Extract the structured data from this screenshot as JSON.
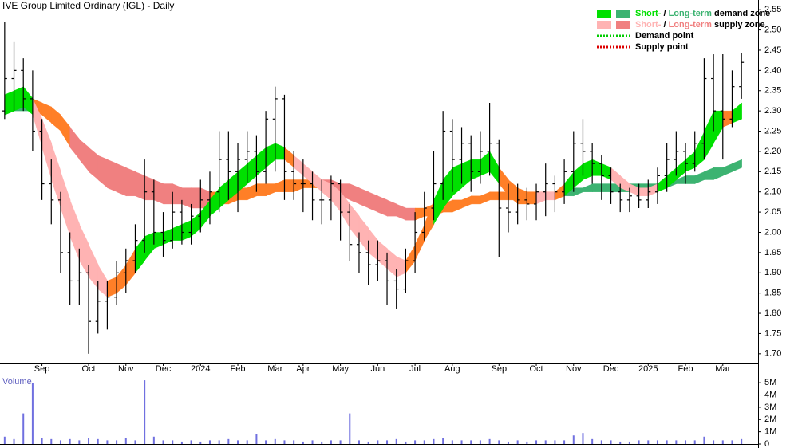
{
  "chart_data": {
    "type": "ohlc",
    "title": "IVE Group Limited Ordinary (IGL) - Daily",
    "categories": [
      null,
      null,
      null,
      null,
      "Sep",
      null,
      null,
      null,
      null,
      "Oct",
      null,
      null,
      null,
      "Nov",
      null,
      null,
      null,
      "Dec",
      null,
      null,
      null,
      "2024",
      null,
      null,
      null,
      "Feb",
      null,
      null,
      null,
      "Mar",
      null,
      null,
      "Apr",
      null,
      null,
      null,
      "May",
      null,
      null,
      null,
      "Jun",
      null,
      null,
      null,
      "Jul",
      null,
      null,
      null,
      "Aug",
      null,
      null,
      null,
      null,
      "Sep",
      null,
      null,
      null,
      "Oct",
      null,
      null,
      null,
      "Nov",
      null,
      null,
      null,
      "Dec",
      null,
      null,
      null,
      "2025",
      null,
      null,
      null,
      "Feb",
      null,
      null,
      null,
      "Mar",
      null,
      null
    ],
    "ohlc": {
      "color": "#000000",
      "open": [
        2.3,
        2.38,
        2.4,
        2.33,
        2.25,
        2.12,
        2.08,
        1.95,
        1.88,
        1.9,
        1.78,
        1.83,
        1.84,
        1.9,
        1.93,
        1.98,
        2.1,
        2.0,
        1.98,
        2.05,
        2.0,
        2.04,
        2.08,
        2.1,
        2.18,
        2.15,
        2.18,
        2.2,
        2.15,
        2.28,
        2.33,
        2.15,
        2.12,
        2.12,
        2.08,
        2.08,
        2.12,
        2.05,
        1.97,
        1.95,
        1.92,
        1.93,
        1.88,
        1.86,
        1.93,
        2.0,
        2.06,
        2.12,
        2.25,
        2.18,
        2.22,
        2.15,
        2.2,
        2.22,
        2.06,
        2.05,
        2.08,
        2.07,
        2.1,
        2.12,
        2.1,
        2.15,
        2.22,
        2.2,
        2.17,
        2.14,
        2.1,
        2.08,
        2.09,
        2.08,
        2.1,
        2.14,
        2.18,
        2.2,
        2.17,
        2.22,
        2.38,
        2.3,
        2.28,
        2.36
      ],
      "high": [
        2.52,
        2.47,
        2.43,
        2.4,
        2.28,
        2.18,
        2.1,
        2.0,
        1.96,
        1.92,
        1.88,
        1.88,
        1.93,
        1.96,
        2.02,
        2.18,
        2.13,
        2.05,
        2.1,
        2.08,
        2.07,
        2.13,
        2.15,
        2.25,
        2.25,
        2.22,
        2.25,
        2.24,
        2.3,
        2.36,
        2.34,
        2.2,
        2.18,
        2.15,
        2.13,
        2.14,
        2.13,
        2.07,
        2.0,
        1.98,
        1.98,
        1.95,
        1.91,
        1.96,
        2.05,
        2.1,
        2.2,
        2.3,
        2.28,
        2.26,
        2.24,
        2.25,
        2.32,
        2.23,
        2.12,
        2.12,
        2.11,
        2.12,
        2.17,
        2.14,
        2.18,
        2.25,
        2.28,
        2.22,
        2.19,
        2.16,
        2.12,
        2.11,
        2.12,
        2.13,
        2.16,
        2.22,
        2.25,
        2.22,
        2.25,
        2.43,
        2.44,
        2.44,
        2.4,
        2.45
      ],
      "low": [
        2.28,
        2.3,
        2.3,
        2.2,
        2.08,
        2.02,
        1.9,
        1.82,
        1.82,
        1.7,
        1.75,
        1.76,
        1.82,
        1.85,
        1.9,
        1.95,
        1.97,
        1.94,
        1.96,
        1.97,
        1.97,
        2.0,
        2.02,
        2.05,
        2.08,
        2.05,
        2.12,
        2.1,
        2.12,
        2.15,
        2.08,
        2.08,
        2.05,
        2.03,
        2.02,
        2.03,
        1.98,
        1.93,
        1.9,
        1.87,
        1.88,
        1.82,
        1.81,
        1.85,
        1.9,
        1.98,
        2.03,
        2.08,
        2.1,
        2.12,
        2.1,
        2.12,
        2.14,
        1.94,
        2.0,
        2.02,
        2.03,
        2.03,
        2.04,
        2.05,
        2.07,
        2.1,
        2.14,
        2.12,
        2.08,
        2.07,
        2.05,
        2.05,
        2.06,
        2.06,
        2.07,
        2.1,
        2.14,
        2.12,
        2.15,
        2.18,
        2.25,
        2.18,
        2.26,
        2.33
      ],
      "close": [
        2.38,
        2.4,
        2.33,
        2.25,
        2.12,
        2.08,
        1.95,
        1.88,
        1.9,
        1.78,
        1.83,
        1.84,
        1.9,
        1.93,
        1.98,
        2.1,
        2.0,
        1.98,
        2.05,
        2.0,
        2.04,
        2.08,
        2.1,
        2.18,
        2.15,
        2.18,
        2.2,
        2.15,
        2.28,
        2.33,
        2.15,
        2.12,
        2.12,
        2.08,
        2.08,
        2.12,
        2.05,
        1.97,
        1.95,
        1.92,
        1.93,
        1.88,
        1.86,
        1.93,
        2.0,
        2.06,
        2.12,
        2.25,
        2.18,
        2.22,
        2.15,
        2.2,
        2.22,
        2.06,
        2.05,
        2.08,
        2.07,
        2.1,
        2.12,
        2.1,
        2.15,
        2.22,
        2.2,
        2.17,
        2.14,
        2.1,
        2.08,
        2.09,
        2.08,
        2.1,
        2.14,
        2.18,
        2.2,
        2.17,
        2.22,
        2.38,
        2.3,
        2.28,
        2.36,
        2.42
      ]
    },
    "zones": [
      {
        "upper": [
          2.33,
          2.33,
          2.33,
          2.33,
          2.32,
          2.31,
          2.29,
          2.26,
          2.23,
          2.21,
          2.19,
          2.18,
          2.17,
          2.16,
          2.15,
          2.14,
          2.13,
          2.12,
          2.12,
          2.11,
          2.11,
          2.11,
          2.1,
          2.1,
          2.1,
          2.11,
          2.11,
          2.12,
          2.12,
          2.12,
          2.13,
          2.13,
          2.13,
          2.13,
          2.13,
          2.13,
          2.12,
          2.12,
          2.11,
          2.1,
          2.09,
          2.08,
          2.07,
          2.06,
          2.06,
          2.06,
          2.07,
          2.07,
          2.08,
          2.08,
          2.09,
          2.09,
          2.1,
          2.1,
          2.1,
          2.1,
          2.1,
          2.1,
          2.1,
          2.1,
          2.1,
          2.11,
          2.11,
          2.12,
          2.12,
          2.12,
          2.12,
          2.12,
          2.12,
          2.12,
          2.12,
          2.13,
          2.13,
          2.14,
          2.14,
          2.15,
          2.16,
          2.16,
          2.17,
          2.18
        ],
        "lower": [
          2.29,
          2.3,
          2.3,
          2.3,
          2.29,
          2.27,
          2.25,
          2.21,
          2.18,
          2.15,
          2.13,
          2.11,
          2.1,
          2.09,
          2.09,
          2.08,
          2.08,
          2.07,
          2.07,
          2.07,
          2.06,
          2.06,
          2.06,
          2.07,
          2.07,
          2.08,
          2.08,
          2.09,
          2.09,
          2.1,
          2.1,
          2.1,
          2.11,
          2.11,
          2.11,
          2.1,
          2.09,
          2.08,
          2.07,
          2.06,
          2.05,
          2.04,
          2.04,
          2.03,
          2.03,
          2.04,
          2.04,
          2.05,
          2.05,
          2.06,
          2.07,
          2.07,
          2.08,
          2.08,
          2.08,
          2.08,
          2.08,
          2.08,
          2.09,
          2.09,
          2.09,
          2.09,
          2.1,
          2.1,
          2.1,
          2.1,
          2.1,
          2.1,
          2.1,
          2.11,
          2.11,
          2.11,
          2.12,
          2.12,
          2.12,
          2.13,
          2.13,
          2.14,
          2.15,
          2.16
        ],
        "colors": [
          "#3cb371",
          "#3cb371",
          "#3cb371",
          "#ff7f27",
          "#ff7f27",
          "#ff7f27",
          "#ff7f27",
          "#f08080",
          "#f08080",
          "#f08080",
          "#f08080",
          "#f08080",
          "#f08080",
          "#f08080",
          "#f08080",
          "#f08080",
          "#f08080",
          "#f08080",
          "#f08080",
          "#f08080",
          "#f08080",
          "#f08080",
          "#ff7f27",
          "#ff7f27",
          "#ff7f27",
          "#ff7f27",
          "#ff7f27",
          "#ff7f27",
          "#ff7f27",
          "#ff7f27",
          "#ff7f27",
          "#ff7f27",
          "#ff7f27",
          "#ff7f27",
          "#f08080",
          "#f08080",
          "#f08080",
          "#f08080",
          "#f08080",
          "#f08080",
          "#f08080",
          "#f08080",
          "#f08080",
          "#f08080",
          "#ff7f27",
          "#ff7f27",
          "#ff7f27",
          "#ff7f27",
          "#ff7f27",
          "#ff7f27",
          "#ff7f27",
          "#ff7f27",
          "#ff7f27",
          "#ff7f27",
          "#ff7f27",
          "#ff7f27",
          "#ff7f27",
          "#ff7f27",
          "#ff7f27",
          "#ff7f27",
          "#3cb371",
          "#3cb371",
          "#3cb371",
          "#3cb371",
          "#3cb371",
          "#3cb371",
          "#3cb371",
          "#3cb371",
          "#3cb371",
          "#3cb371",
          "#3cb371",
          "#3cb371",
          "#3cb371",
          "#3cb371",
          "#3cb371",
          "#3cb371",
          "#3cb371",
          "#3cb371",
          "#3cb371",
          "#3cb371"
        ]
      },
      {
        "upper": [
          2.34,
          2.35,
          2.36,
          2.33,
          2.28,
          2.22,
          2.15,
          2.08,
          2.02,
          1.97,
          1.92,
          1.88,
          1.89,
          1.92,
          1.96,
          1.99,
          2.0,
          2.0,
          2.01,
          2.02,
          2.03,
          2.05,
          2.08,
          2.11,
          2.13,
          2.15,
          2.17,
          2.19,
          2.21,
          2.22,
          2.21,
          2.19,
          2.17,
          2.15,
          2.13,
          2.12,
          2.1,
          2.07,
          2.04,
          2.01,
          1.98,
          1.96,
          1.94,
          1.93,
          1.97,
          2.02,
          2.08,
          2.13,
          2.16,
          2.17,
          2.18,
          2.18,
          2.2,
          2.16,
          2.13,
          2.11,
          2.1,
          2.1,
          2.1,
          2.1,
          2.12,
          2.15,
          2.17,
          2.18,
          2.17,
          2.16,
          2.14,
          2.12,
          2.11,
          2.11,
          2.12,
          2.14,
          2.16,
          2.18,
          2.2,
          2.25,
          2.3,
          2.3,
          2.3,
          2.32
        ],
        "lower": [
          2.29,
          2.3,
          2.31,
          2.29,
          2.21,
          2.13,
          2.06,
          1.99,
          1.93,
          1.89,
          1.86,
          1.84,
          1.85,
          1.87,
          1.9,
          1.93,
          1.96,
          1.97,
          1.98,
          1.98,
          1.99,
          2.01,
          2.04,
          2.06,
          2.08,
          2.1,
          2.12,
          2.14,
          2.16,
          2.18,
          2.18,
          2.16,
          2.14,
          2.12,
          2.1,
          2.08,
          2.05,
          2.01,
          1.98,
          1.95,
          1.93,
          1.91,
          1.89,
          1.9,
          1.93,
          1.98,
          2.02,
          2.06,
          2.09,
          2.11,
          2.13,
          2.14,
          2.15,
          2.12,
          2.09,
          2.07,
          2.07,
          2.07,
          2.08,
          2.08,
          2.09,
          2.11,
          2.13,
          2.14,
          2.14,
          2.13,
          2.11,
          2.1,
          2.09,
          2.09,
          2.1,
          2.11,
          2.13,
          2.15,
          2.16,
          2.18,
          2.22,
          2.26,
          2.27,
          2.28
        ],
        "colors": [
          "#00e000",
          "#00e000",
          "#00e000",
          "#ffb3b3",
          "#ffb3b3",
          "#ffb3b3",
          "#ffb3b3",
          "#ffb3b3",
          "#ffb3b3",
          "#ffb3b3",
          "#ffb3b3",
          "#ff7f27",
          "#ff7f27",
          "#ff7f27",
          "#00e000",
          "#00e000",
          "#00e000",
          "#00e000",
          "#00e000",
          "#00e000",
          "#00e000",
          "#00e000",
          "#00e000",
          "#00e000",
          "#00e000",
          "#00e000",
          "#00e000",
          "#00e000",
          "#00e000",
          "#00e000",
          "#ff7f27",
          "#ffb3b3",
          "#ffb3b3",
          "#ffb3b3",
          "#ffb3b3",
          "#ffb3b3",
          "#ffb3b3",
          "#ffb3b3",
          "#ffb3b3",
          "#ffb3b3",
          "#ffb3b3",
          "#ffb3b3",
          "#ffb3b3",
          "#ff7f27",
          "#ff7f27",
          "#ff7f27",
          "#00e000",
          "#00e000",
          "#00e000",
          "#00e000",
          "#00e000",
          "#00e000",
          "#00e000",
          "#ff7f27",
          "#ff7f27",
          "#ff7f27",
          "#ff7f27",
          "#ffb3b3",
          "#ffb3b3",
          "#ff7f27",
          "#00e000",
          "#00e000",
          "#00e000",
          "#00e000",
          "#00e000",
          "#ffb3b3",
          "#ffb3b3",
          "#ffb3b3",
          "#ffb3b3",
          "#ffb3b3",
          "#00e000",
          "#00e000",
          "#00e000",
          "#00e000",
          "#00e000",
          "#00e000",
          "#00e000",
          "#ff7f27",
          "#00e000",
          "#00e000"
        ]
      }
    ],
    "ylim": [
      1.678,
      2.574
    ],
    "yticks": [
      {
        "value": 1.7,
        "label": "1.70"
      },
      1.75,
      {
        "value": 1.8,
        "label": "1.80"
      },
      1.85,
      {
        "value": 1.9,
        "label": "1.90"
      },
      1.95,
      {
        "value": 2.0,
        "label": "2.00"
      },
      2.05,
      {
        "value": 2.1,
        "label": "2.10"
      },
      2.15,
      {
        "value": 2.2,
        "label": "2.20"
      },
      2.25,
      {
        "value": 2.3,
        "label": "2.30"
      },
      2.35,
      {
        "value": 2.4,
        "label": "2.40"
      },
      2.45,
      {
        "value": 2.5,
        "label": "2.50"
      },
      2.55
    ],
    "legend": [
      {
        "style": "zone",
        "swatches": [
          "#00e000",
          "#3cb371"
        ],
        "parts": [
          "Short-",
          " / ",
          "Long-term",
          " demand zone"
        ],
        "colors": [
          "#00e000",
          "#000000",
          "#3cb371",
          "#000000"
        ]
      },
      {
        "style": "zone",
        "swatches": [
          "#ffb3b3",
          "#f08080"
        ],
        "parts": [
          "Short-",
          " / ",
          "Long-term",
          " supply zone"
        ],
        "colors": [
          "#ffb3b3",
          "#000000",
          "#f08080",
          "#000000"
        ]
      },
      {
        "style": "dotted",
        "swatches": [
          "#00cc00"
        ],
        "parts": [
          "Demand point"
        ],
        "colors": [
          "#000000"
        ]
      },
      {
        "style": "dotted",
        "swatches": [
          "#dd0000"
        ],
        "parts": [
          "Supply point"
        ],
        "colors": [
          "#000000"
        ]
      }
    ],
    "volume": {
      "name": "Volume",
      "color": "#7070e0",
      "values": [
        600000,
        400000,
        2500000,
        5000000,
        500000,
        400000,
        300000,
        400000,
        300000,
        500000,
        400000,
        300000,
        300000,
        500000,
        300000,
        5200000,
        600000,
        300000,
        300000,
        200000,
        300000,
        200000,
        300000,
        300000,
        400000,
        300000,
        300000,
        800000,
        300000,
        400000,
        300000,
        300000,
        200000,
        300000,
        200000,
        300000,
        300000,
        2500000,
        300000,
        200000,
        300000,
        300000,
        400000,
        200000,
        300000,
        300000,
        400000,
        500000,
        300000,
        300000,
        300000,
        300000,
        400000,
        300000,
        200000,
        300000,
        200000,
        300000,
        300000,
        300000,
        300000,
        700000,
        900000,
        400000,
        300000,
        300000,
        200000,
        200000,
        300000,
        300000,
        300000,
        300000,
        300000,
        300000,
        300000,
        600000,
        300000,
        300000,
        300000,
        400000
      ],
      "ylim": [
        0,
        5530000
      ],
      "yticks": [
        0,
        {
          "value": 1000000,
          "label": "1M"
        },
        {
          "value": 2000000,
          "label": "2M"
        },
        {
          "value": 3000000,
          "label": "3M"
        },
        {
          "value": 4000000,
          "label": "4M"
        },
        {
          "value": 5000000,
          "label": "5M"
        }
      ]
    }
  }
}
